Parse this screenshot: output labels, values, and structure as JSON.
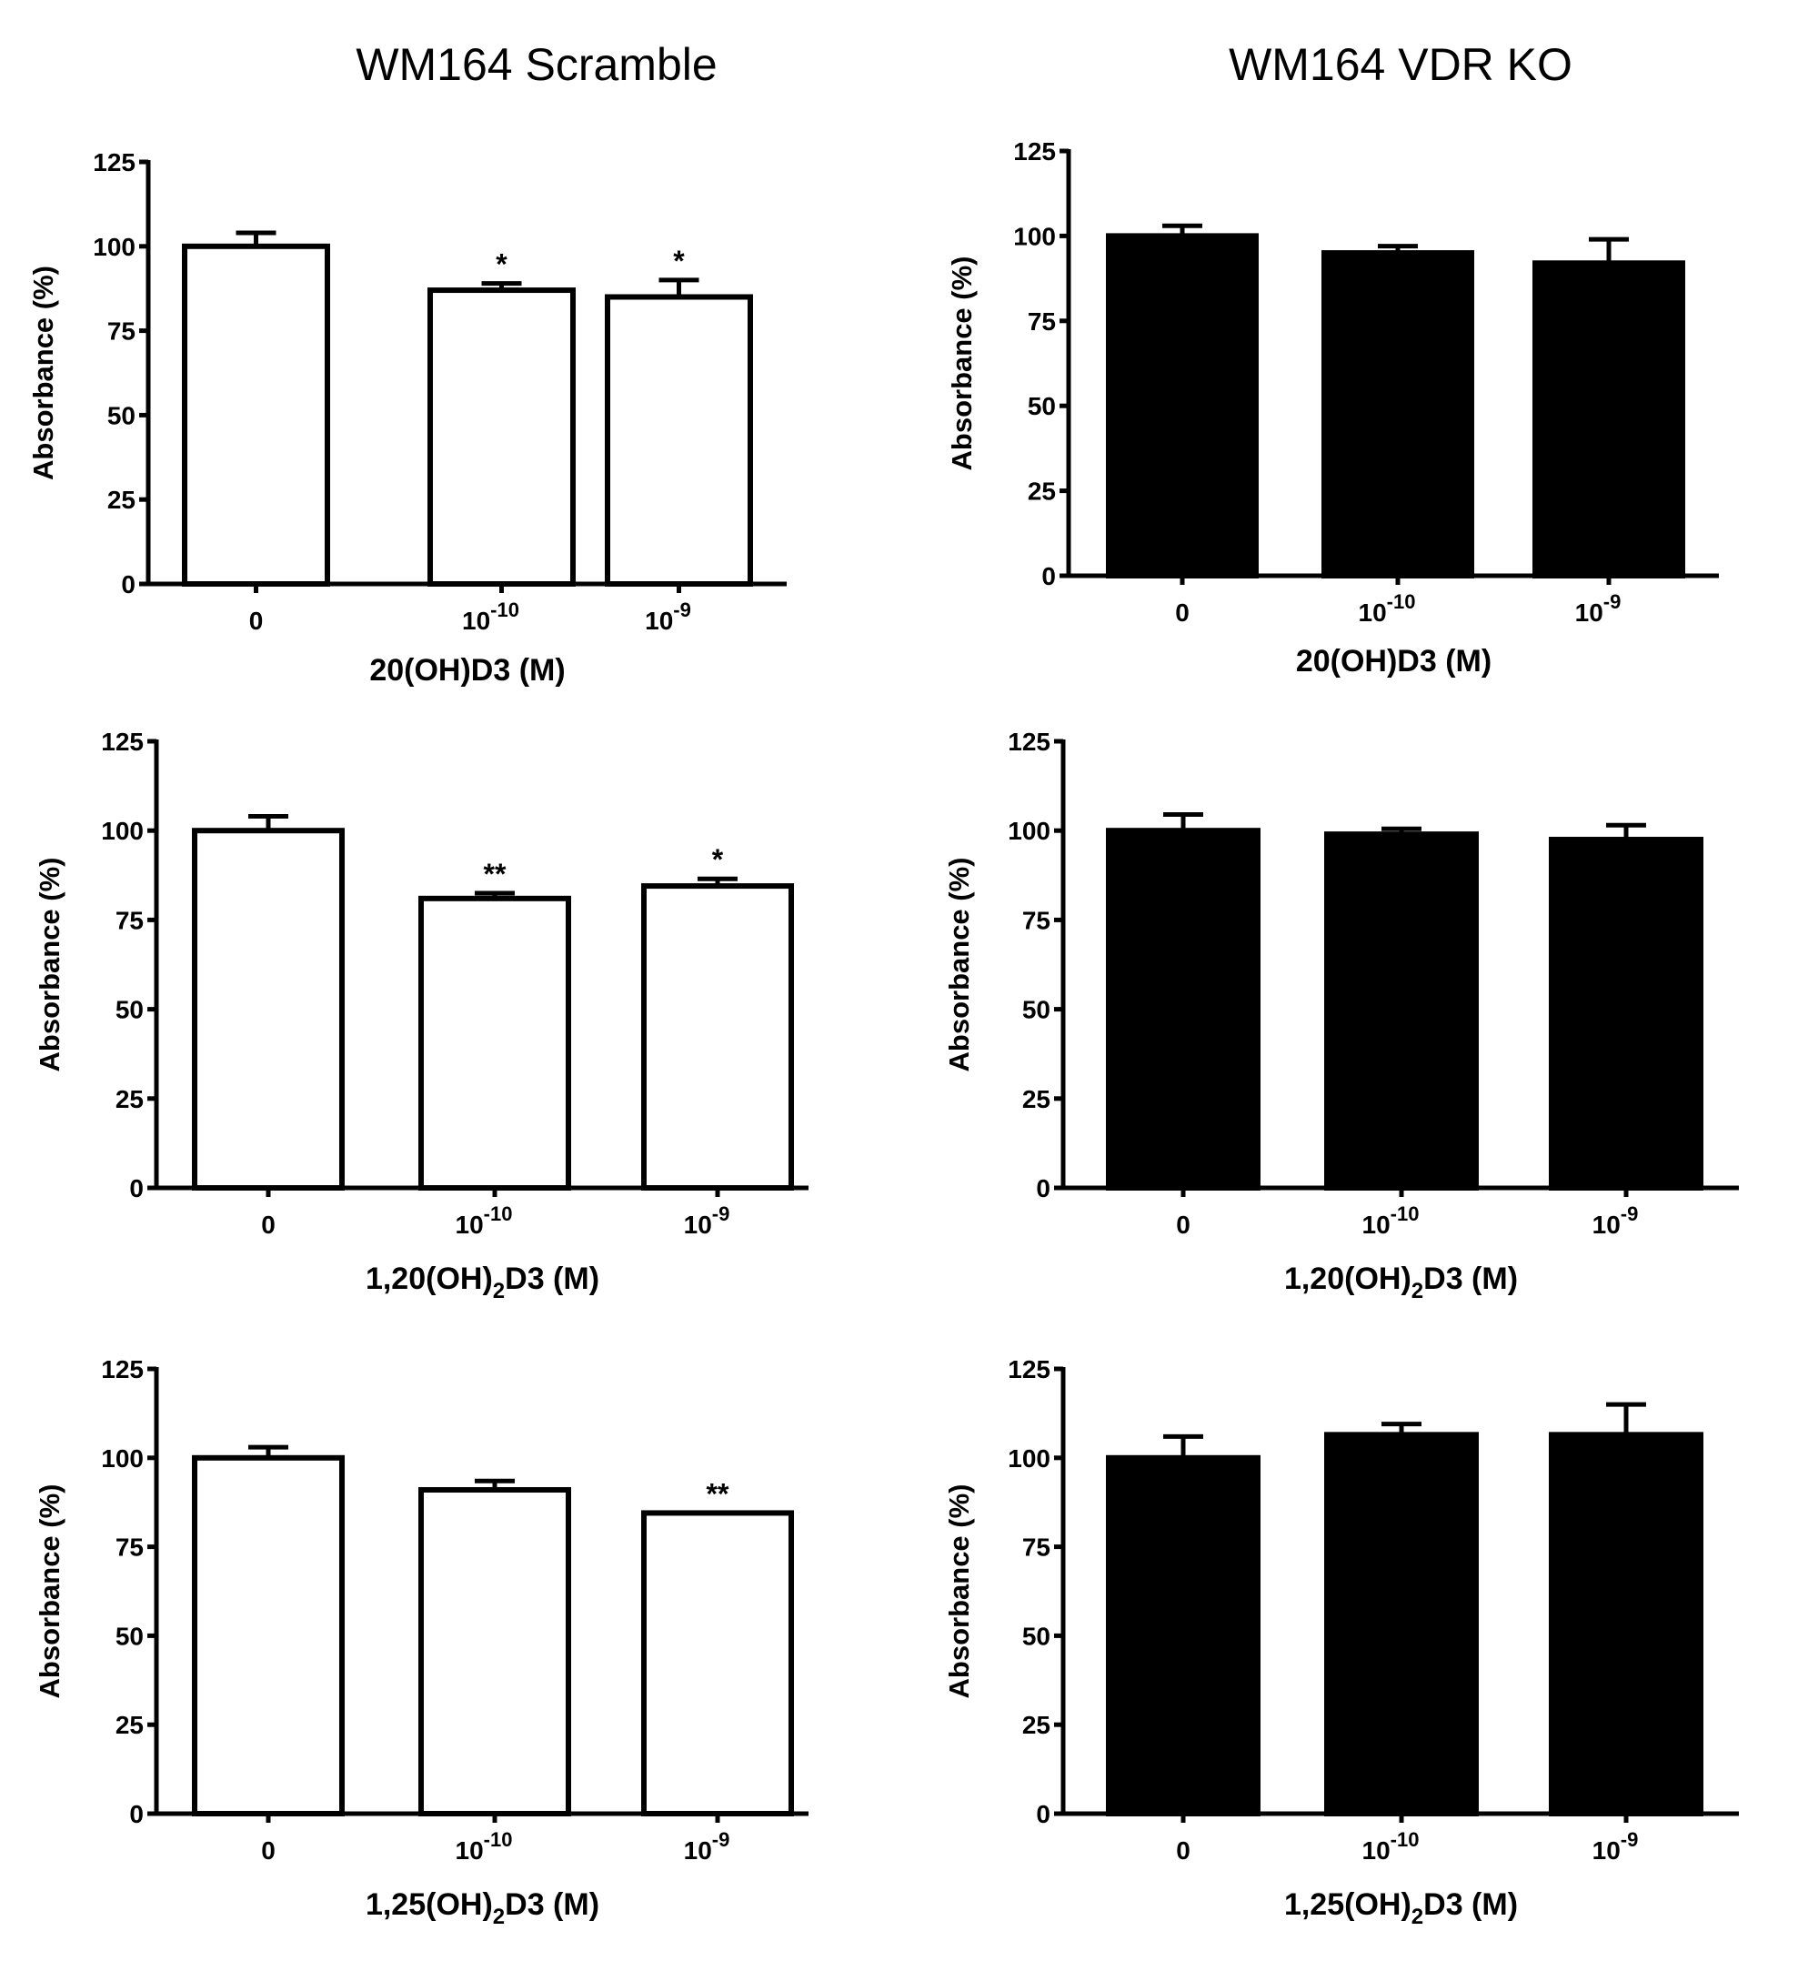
{
  "column_titles": [
    "WM164 Scramble",
    "WM164 VDR KO"
  ],
  "chart_data": [
    {
      "type": "bar",
      "panel": "scramble-20OHD3",
      "title": "WM164 Scramble",
      "xlabel": "20(OH)D3 (M)",
      "xlabel_main": "20(OH)D3 (M)",
      "xlabel_sub": "",
      "ylabel": "Absorbance (%)",
      "ylim": [
        0,
        125
      ],
      "yticks": [
        0,
        25,
        50,
        75,
        100,
        125
      ],
      "categories": [
        "0",
        "10-10",
        "10-9"
      ],
      "category_labels": [
        {
          "base": "0",
          "exp": ""
        },
        {
          "base": "10",
          "exp": "-10"
        },
        {
          "base": "10",
          "exp": "-9"
        }
      ],
      "values": [
        100,
        87,
        85
      ],
      "errors": [
        4,
        2,
        5
      ],
      "annotations": [
        "",
        "*",
        "*"
      ],
      "bar_color": "#ffffff"
    },
    {
      "type": "bar",
      "panel": "vdrko-20OHD3",
      "title": "WM164 VDR KO",
      "xlabel": "20(OH)D3 (M)",
      "xlabel_main": "20(OH)D3 (M)",
      "xlabel_sub": "",
      "ylabel": "Absorbance (%)",
      "ylim": [
        0,
        125
      ],
      "yticks": [
        0,
        25,
        50,
        75,
        100,
        125
      ],
      "categories": [
        "0",
        "10-10",
        "10-9"
      ],
      "category_labels": [
        {
          "base": "0",
          "exp": ""
        },
        {
          "base": "10",
          "exp": "-10"
        },
        {
          "base": "10",
          "exp": "-9"
        }
      ],
      "values": [
        100,
        95,
        92
      ],
      "errors": [
        3,
        2,
        7
      ],
      "annotations": [
        "",
        "",
        ""
      ],
      "bar_color": "#000000"
    },
    {
      "type": "bar",
      "panel": "scramble-120OH2D3",
      "xlabel": "1,20(OH)2D3 (M)",
      "xlabel_main": "1,20(OH)",
      "xlabel_sub": "2",
      "xlabel_rest": "D3 (M)",
      "ylabel": "Absorbance (%)",
      "ylim": [
        0,
        125
      ],
      "yticks": [
        0,
        25,
        50,
        75,
        100,
        125
      ],
      "categories": [
        "0",
        "10-10",
        "10-9"
      ],
      "category_labels": [
        {
          "base": "0",
          "exp": ""
        },
        {
          "base": "10",
          "exp": "-10"
        },
        {
          "base": "10",
          "exp": "-9"
        }
      ],
      "values": [
        100,
        81,
        84.5
      ],
      "errors": [
        4,
        1.5,
        2
      ],
      "annotations": [
        "",
        "**",
        "*"
      ],
      "bar_color": "#ffffff"
    },
    {
      "type": "bar",
      "panel": "vdrko-120OH2D3",
      "xlabel": "1,20(OH)2D3 (M)",
      "xlabel_main": "1,20(OH)",
      "xlabel_sub": "2",
      "xlabel_rest": "D3 (M)",
      "ylabel": "Absorbance (%)",
      "ylim": [
        0,
        125
      ],
      "yticks": [
        0,
        25,
        50,
        75,
        100,
        125
      ],
      "categories": [
        "0",
        "10-10",
        "10-9"
      ],
      "category_labels": [
        {
          "base": "0",
          "exp": ""
        },
        {
          "base": "10",
          "exp": "-10"
        },
        {
          "base": "10",
          "exp": "-9"
        }
      ],
      "values": [
        100,
        99,
        97.5
      ],
      "errors": [
        4.5,
        1.5,
        4
      ],
      "annotations": [
        "",
        "",
        ""
      ],
      "bar_color": "#000000"
    },
    {
      "type": "bar",
      "panel": "scramble-125OH2D3",
      "xlabel": "1,25(OH)2D3 (M)",
      "xlabel_main": "1,25(OH)",
      "xlabel_sub": "2",
      "xlabel_rest": "D3 (M)",
      "ylabel": "Absorbance (%)",
      "ylim": [
        0,
        125
      ],
      "yticks": [
        0,
        25,
        50,
        75,
        100,
        125
      ],
      "categories": [
        "0",
        "10-10",
        "10-9"
      ],
      "category_labels": [
        {
          "base": "0",
          "exp": ""
        },
        {
          "base": "10",
          "exp": "-10"
        },
        {
          "base": "10",
          "exp": "-9"
        }
      ],
      "values": [
        100,
        91,
        84.5
      ],
      "errors": [
        3,
        2.5,
        0
      ],
      "annotations": [
        "",
        "",
        "**"
      ],
      "bar_color": "#ffffff"
    },
    {
      "type": "bar",
      "panel": "vdrko-125OH2D3",
      "xlabel": "1,25(OH)2D3 (M)",
      "xlabel_main": "1,25(OH)",
      "xlabel_sub": "2",
      "xlabel_rest": "D3 (M)",
      "ylabel": "Absorbance (%)",
      "ylim": [
        0,
        125
      ],
      "yticks": [
        0,
        25,
        50,
        75,
        100,
        125
      ],
      "categories": [
        "0",
        "10-10",
        "10-9"
      ],
      "category_labels": [
        {
          "base": "0",
          "exp": ""
        },
        {
          "base": "10",
          "exp": "-10"
        },
        {
          "base": "10",
          "exp": "-9"
        }
      ],
      "values": [
        100,
        106.5,
        106.5
      ],
      "errors": [
        6,
        3,
        8.5
      ],
      "annotations": [
        "",
        "",
        ""
      ],
      "bar_color": "#000000"
    }
  ]
}
